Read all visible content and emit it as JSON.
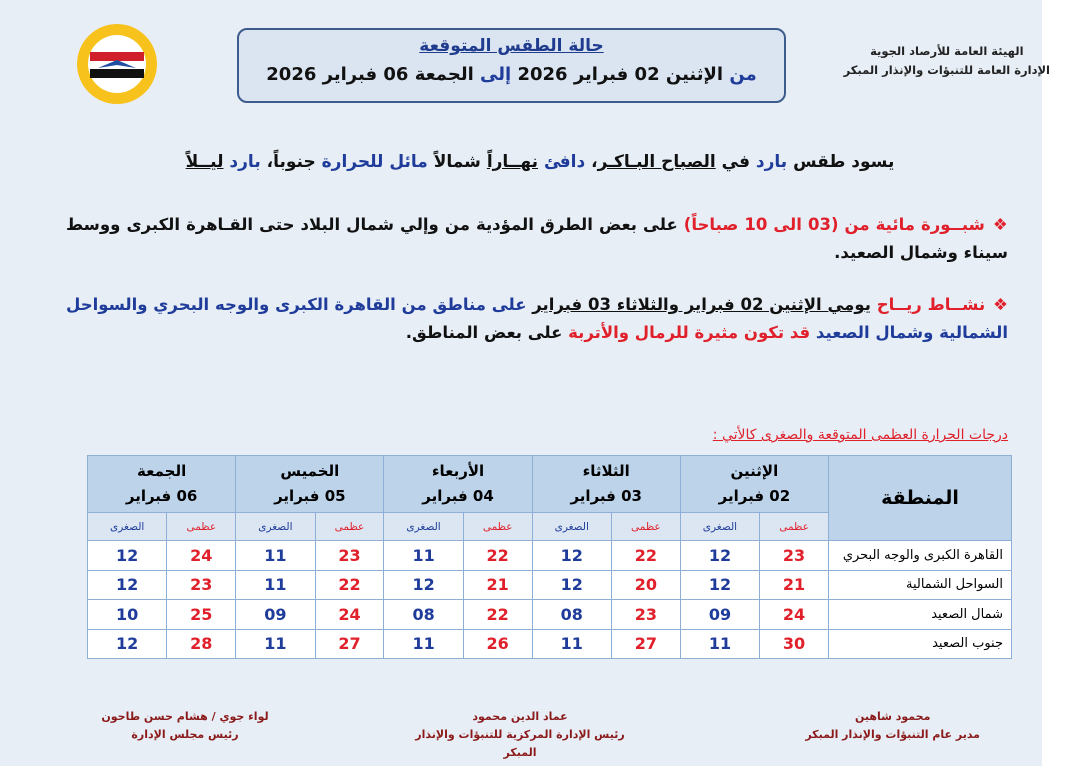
{
  "header": {
    "org_line1": "الهيئة العامة للأرصاد الجوية",
    "org_line2": "الإدارة العامة للتنبؤات والإنذار المبكر",
    "title": "حالة الطقس المتوقعة",
    "date_range": [
      "من ",
      "الإثنين 02 فبراير 2026 ",
      "إلى ",
      "الجمعة 06 فبراير 2026"
    ]
  },
  "summary": [
    "يسود طقس ",
    "بارد",
    " في ",
    "الصباح البـاكـر",
    "، ",
    "دافئ",
    " ",
    "نهــاراً",
    " شمالاً ",
    "مائل للحرارة",
    " جنوباً، ",
    "بارد",
    " ",
    "ليــلاً"
  ],
  "bullets": [
    [
      "شبــورة مائية من (03 الى 10 صباحاً)",
      " على بعض الطرق المؤدية من وإلي شمال البلاد حتى القـاهرة الكبرى ووسط سيناء وشمال الصعيد."
    ],
    [
      "نشــاط ريــاح",
      " ",
      "يومي الإثنين 02 فبراير والثلاثاء 03 فبراير",
      " على مناطق من القاهرة الكبرى والوجه البحري والسواحل الشمالية وشمال الصعيد",
      " قد تكون مثيرة للرمال والأتربة",
      " على بعض المناطق."
    ]
  ],
  "table": {
    "caption": "درجات الحرارة العظمى المتوقعة والصغرى كالأتي :",
    "region_header": "المنطقة",
    "max_label": "عظمى",
    "min_label": "الصغرى",
    "days": [
      {
        "name": "الإثنين",
        "date": "02 فبراير"
      },
      {
        "name": "الثلاثاء",
        "date": "03 فبراير"
      },
      {
        "name": "الأربعاء",
        "date": "04 فبراير"
      },
      {
        "name": "الخميس",
        "date": "05 فبراير"
      },
      {
        "name": "الجمعة",
        "date": "06 فبراير"
      }
    ],
    "rows": [
      {
        "region": "القاهرة الكبرى والوجه البحري",
        "temps": [
          [
            "23",
            "12"
          ],
          [
            "22",
            "12"
          ],
          [
            "22",
            "11"
          ],
          [
            "23",
            "11"
          ],
          [
            "24",
            "12"
          ]
        ]
      },
      {
        "region": "السواحل الشمالية",
        "temps": [
          [
            "21",
            "12"
          ],
          [
            "20",
            "12"
          ],
          [
            "21",
            "12"
          ],
          [
            "22",
            "11"
          ],
          [
            "23",
            "12"
          ]
        ]
      },
      {
        "region": "شمال الصعيد",
        "temps": [
          [
            "24",
            "09"
          ],
          [
            "23",
            "08"
          ],
          [
            "22",
            "08"
          ],
          [
            "24",
            "09"
          ],
          [
            "25",
            "10"
          ]
        ]
      },
      {
        "region": "جنوب الصعيد",
        "temps": [
          [
            "30",
            "11"
          ],
          [
            "27",
            "11"
          ],
          [
            "26",
            "11"
          ],
          [
            "27",
            "11"
          ],
          [
            "28",
            "12"
          ]
        ]
      }
    ]
  },
  "signatures": [
    {
      "name": "محمود شاهين",
      "role": "مدير عام التنبؤات والإنذار المبكر"
    },
    {
      "name": "عماد الدين محمود",
      "role": "رئيس الإدارة المركزية للتنبؤات والإنذار المبكر"
    },
    {
      "name": "لواء جوي / هشام حسن طاحون",
      "role": "رئيس مجلس الإدارة"
    }
  ]
}
